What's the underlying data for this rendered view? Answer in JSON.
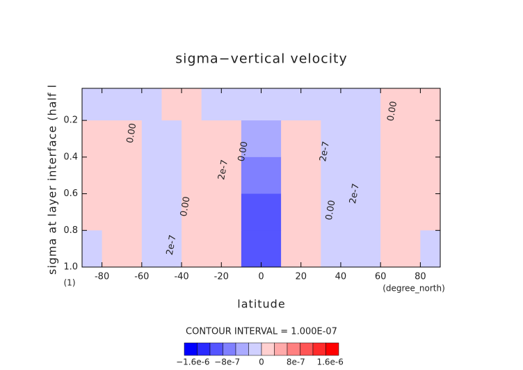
{
  "chart_data": {
    "type": "contour",
    "title": "sigma−vertical velocity",
    "ylabel": "sigma at layer interface (half l",
    "yunit": "(1)",
    "xlabel": "latitude",
    "xunit": "(degree_north)",
    "subtitle": "CONTOUR INTERVAL = 1.000E-07",
    "xlim": [
      -90,
      90
    ],
    "ylim": [
      1.0,
      0.025
    ],
    "xticks": [
      -80,
      -60,
      -40,
      -20,
      0,
      20,
      40,
      60,
      80
    ],
    "yticks": [
      0.2,
      0.4,
      0.6,
      0.8,
      {
        "value": 1.0,
        "label": "1.0"
      }
    ],
    "x": [
      -85,
      -75,
      -65,
      -55,
      -45,
      -35,
      -25,
      -15,
      -5,
      5,
      15,
      25,
      35,
      45,
      55,
      65,
      75,
      85
    ],
    "y": [
      0.1,
      0.3,
      0.5,
      0.7,
      0.9
    ],
    "z": [
      [
        -5e-08,
        -5e-08,
        -3e-08,
        -3e-08,
        5e-08,
        3e-08,
        -5e-08,
        -5e-08,
        -2e-07,
        -2e-07,
        -5e-08,
        -5e-08,
        -5e-08,
        -3e-08,
        -1e-07,
        3e-08,
        5e-08,
        5e-08
      ],
      [
        5e-08,
        5e-08,
        5e-08,
        -5e-08,
        -1e-07,
        1e-07,
        1.5e-07,
        1e-07,
        -5e-07,
        -5e-07,
        1e-07,
        1.5e-07,
        -5e-08,
        -1.5e-07,
        -5e-08,
        5e-08,
        5e-08,
        5e-08
      ],
      [
        5e-08,
        5e-08,
        5e-08,
        -1e-07,
        -2e-07,
        2e-07,
        2.5e-07,
        2e-07,
        -9e-07,
        -9e-07,
        2e-07,
        2.5e-07,
        -1e-07,
        -2.5e-07,
        -1e-07,
        5e-08,
        5e-08,
        5e-08
      ],
      [
        5e-08,
        5e-08,
        5e-08,
        -1e-07,
        -2.5e-07,
        2e-07,
        2.5e-07,
        2e-07,
        -1.2e-06,
        -1.2e-06,
        2e-07,
        2.5e-07,
        -1e-07,
        -2.5e-07,
        -1e-07,
        5e-08,
        5e-08,
        5e-08
      ],
      [
        -3e-08,
        3e-08,
        5e-08,
        -1e-07,
        -2e-07,
        1.5e-07,
        2e-07,
        1.5e-07,
        -1e-06,
        -1e-06,
        1.5e-07,
        2e-07,
        -1e-07,
        -2e-07,
        -5e-08,
        3e-08,
        3e-08,
        -3e-08
      ]
    ],
    "contour_labels": [
      {
        "text": "0.00",
        "x": -65,
        "y": 0.27
      },
      {
        "text": "0.00",
        "x": -38,
        "y": 0.67
      },
      {
        "text": "2e-7",
        "x": -45,
        "y": 0.88
      },
      {
        "text": "2e-7",
        "x": -19,
        "y": 0.47
      },
      {
        "text": "0.00",
        "x": -9,
        "y": 0.37
      },
      {
        "text": "2e-7",
        "x": 32,
        "y": 0.37
      },
      {
        "text": "0.00",
        "x": 35,
        "y": 0.69
      },
      {
        "text": "2e-7",
        "x": 47,
        "y": 0.6
      },
      {
        "text": "0.00",
        "x": 66,
        "y": 0.15
      }
    ],
    "colorbar": {
      "bounds": [
        -1.8e-06,
        -1.5e-06,
        -1.2e-06,
        -9e-07,
        -6e-07,
        -3e-07,
        0,
        3e-07,
        6e-07,
        9e-07,
        1.2e-06,
        1.5e-06,
        1.8e-06
      ],
      "colors": [
        "#0000ff",
        "#2a2aff",
        "#5555ff",
        "#8080ff",
        "#aaaaff",
        "#d0d0ff",
        "#ffd0d0",
        "#ffaaaa",
        "#ff8080",
        "#ff5555",
        "#ff2a2a",
        "#ff0000"
      ],
      "ticks": [
        {
          "value": -1.6e-06,
          "label": "−1.6e-6"
        },
        {
          "value": -8e-07,
          "label": "−8e-7"
        },
        0,
        {
          "value": 8e-07,
          "label": "8e-7"
        },
        {
          "value": 1.6e-06,
          "label": "1.6e-6"
        }
      ]
    }
  }
}
